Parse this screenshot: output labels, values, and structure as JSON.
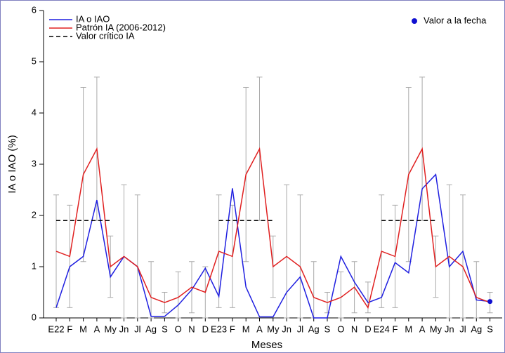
{
  "chart_data": {
    "type": "line",
    "ylabel": "IA o IAO (%)",
    "xlabel": "Meses",
    "categories": [
      "E22",
      "F",
      "M",
      "A",
      "My",
      "Jn",
      "Jl",
      "Ag",
      "S",
      "O",
      "N",
      "D",
      "E23",
      "F",
      "M",
      "A",
      "My",
      "Jn",
      "Jl",
      "Ag",
      "S",
      "O",
      "N",
      "D",
      "E24",
      "F",
      "M",
      "A",
      "My",
      "Jn",
      "Jl",
      "Ag",
      "S"
    ],
    "ylim": [
      0,
      6
    ],
    "yticks": [
      0,
      1,
      2,
      3,
      4,
      5,
      6
    ],
    "series": [
      {
        "name": "IA o IAO",
        "color": "#1f1fe0",
        "style": "solid",
        "values": [
          0.2,
          1.0,
          1.2,
          2.3,
          0.8,
          1.2,
          1.0,
          0.03,
          0.03,
          0.25,
          0.55,
          0.97,
          0.42,
          2.53,
          0.6,
          0.02,
          0.02,
          0.5,
          0.8,
          0.0,
          0.0,
          1.2,
          0.7,
          0.3,
          0.4,
          1.08,
          0.88,
          2.52,
          2.8,
          1.0,
          1.3,
          0.35,
          0.32
        ]
      },
      {
        "name": "Patrón IA (2006-2012)",
        "color": "#e02020",
        "style": "solid",
        "values": [
          1.3,
          1.2,
          2.8,
          3.3,
          1.0,
          1.2,
          1.0,
          0.4,
          0.3,
          0.4,
          0.6,
          0.5,
          1.3,
          1.2,
          2.8,
          3.3,
          1.0,
          1.2,
          1.0,
          0.4,
          0.3,
          0.4,
          0.6,
          0.2,
          1.3,
          1.2,
          2.8,
          3.3,
          1.0,
          1.2,
          1.0,
          0.4,
          0.3
        ],
        "error_low": [
          0.2,
          0.2,
          1.1,
          1.9,
          0.4,
          0.0,
          0.0,
          0.0,
          0.1,
          0.0,
          0.1,
          0.0,
          0.2,
          0.2,
          1.1,
          1.9,
          0.4,
          0.0,
          0.0,
          0.0,
          0.1,
          0.0,
          0.1,
          0.1,
          0.2,
          0.2,
          1.1,
          1.9,
          0.4,
          0.0,
          0.0,
          0.0,
          0.1
        ],
        "error_high": [
          2.4,
          2.2,
          4.5,
          4.7,
          1.6,
          2.6,
          2.4,
          1.1,
          0.5,
          0.9,
          1.1,
          1.0,
          2.4,
          2.2,
          4.5,
          4.7,
          1.6,
          2.6,
          2.4,
          1.1,
          0.5,
          0.9,
          1.1,
          0.7,
          2.4,
          2.2,
          4.5,
          4.7,
          1.6,
          2.6,
          2.4,
          1.1,
          0.5
        ],
        "error_color": "#aaaaaa"
      },
      {
        "name": "Valor crítico IA",
        "color": "#000000",
        "style": "dashed",
        "values": [
          1.9,
          1.9,
          1.9,
          1.9,
          1.9,
          null,
          null,
          null,
          null,
          null,
          null,
          null,
          1.9,
          1.9,
          1.9,
          1.9,
          1.9,
          null,
          null,
          null,
          null,
          null,
          null,
          null,
          1.9,
          1.9,
          1.9,
          1.9,
          1.9,
          null,
          null,
          null,
          null
        ]
      },
      {
        "name": "Valor a la fecha",
        "color": "#1010d0",
        "style": "dot",
        "values": [
          null,
          null,
          null,
          null,
          null,
          null,
          null,
          null,
          null,
          null,
          null,
          null,
          null,
          null,
          null,
          null,
          null,
          null,
          null,
          null,
          null,
          null,
          null,
          null,
          null,
          null,
          null,
          null,
          null,
          null,
          null,
          null,
          0.32
        ]
      }
    ]
  }
}
